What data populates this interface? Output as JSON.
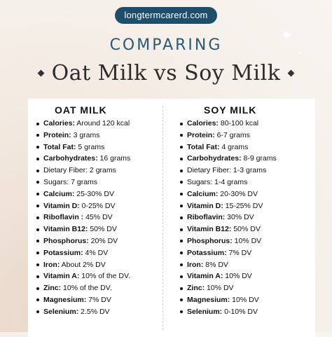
{
  "header": {
    "site": "longtermcarerd.com",
    "kicker": "COMPARING",
    "title": "Oat Milk vs Soy Milk"
  },
  "oat": {
    "heading": "OAT MILK",
    "items": [
      {
        "label": "Calories:",
        "value": " Around 120 kcal",
        "bold": true
      },
      {
        "label": "Protein:",
        "value": " 3 grams",
        "bold": true
      },
      {
        "label": "Total Fat:",
        "value": " 5 grams",
        "bold": true
      },
      {
        "label": "Carbohydrates:",
        "value": " 16 grams",
        "bold": true
      },
      {
        "label": "Dietary Fiber:",
        "value": " 2 grams",
        "bold": false
      },
      {
        "label": "Sugars:",
        "value": " 7 grams",
        "bold": false
      },
      {
        "label": "Calcium:",
        "value": " 25-30% DV",
        "bold": true
      },
      {
        "label": "Vitamin D:",
        "value": " 0-25% DV",
        "bold": true
      },
      {
        "label": "Riboflavin :",
        "value": " 45% DV",
        "bold": true
      },
      {
        "label": "Vitamin B12:",
        "value": " 50% DV",
        "bold": true
      },
      {
        "label": "Phosphorus:",
        "value": " 20% DV",
        "bold": true
      },
      {
        "label": "Potassium:",
        "value": " 4% DV",
        "bold": true
      },
      {
        "label": "Iron:",
        "value": " About 2% DV",
        "bold": true
      },
      {
        "label": "Vitamin A:",
        "value": " 10% of the DV.",
        "bold": true
      },
      {
        "label": "Zinc:",
        "value": " 10% of the DV.",
        "bold": true
      },
      {
        "label": "Magnesium:",
        "value": " 7% DV",
        "bold": true
      },
      {
        "label": "Selenium:",
        "value": " 2.5% DV",
        "bold": true
      }
    ]
  },
  "soy": {
    "heading": "SOY MILK",
    "items": [
      {
        "label": "Calories:",
        "value": " 80-100 kcal",
        "bold": true
      },
      {
        "label": "Protein:",
        "value": " 6-7 grams",
        "bold": true
      },
      {
        "label": "Total Fat:",
        "value": " 4 grams",
        "bold": true
      },
      {
        "label": "Carbohydrates:",
        "value": " 8-9 grams",
        "bold": true
      },
      {
        "label": "Dietary Fiber:",
        "value": " 1-3 grams",
        "bold": false
      },
      {
        "label": "Sugars:",
        "value": " 1-4 grams",
        "bold": false
      },
      {
        "label": "Calcium:",
        "value": " 20-30% DV",
        "bold": true
      },
      {
        "label": "Vitamin D:",
        "value": " 15-25% DV",
        "bold": true
      },
      {
        "label": "Riboflavin:",
        "value": " 30% DV",
        "bold": true
      },
      {
        "label": "Vitamin B12:",
        "value": " 50% DV",
        "bold": true
      },
      {
        "label": "Phosphorus:",
        "value": " 10% DV",
        "bold": true
      },
      {
        "label": "Potassium:",
        "value": " 7% DV",
        "bold": true
      },
      {
        "label": "Iron:",
        "value": " 8% DV",
        "bold": true
      },
      {
        "label": "Vitamin A:",
        "value": " 10% DV",
        "bold": true
      },
      {
        "label": "Zinc:",
        "value": " 10% DV",
        "bold": true
      },
      {
        "label": "Magnesium:",
        "value": " 10% DV",
        "bold": true
      },
      {
        "label": "Selenium:",
        "value": " 0-10% DV",
        "bold": true
      }
    ]
  },
  "colors": {
    "accent": "#1f4e6d",
    "heading": "#2a5975",
    "text": "#111111"
  },
  "icons": [
    "sparkle-icon",
    "diamond-icon"
  ]
}
